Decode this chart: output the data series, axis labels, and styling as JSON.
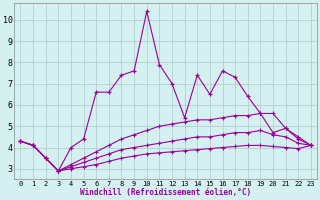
{
  "xlabel": "Windchill (Refroidissement éolien,°C)",
  "x": [
    0,
    1,
    2,
    3,
    4,
    5,
    6,
    7,
    8,
    9,
    10,
    11,
    12,
    13,
    14,
    15,
    16,
    17,
    18,
    19,
    20,
    21,
    22,
    23
  ],
  "series1": [
    4.3,
    4.1,
    3.5,
    2.9,
    4.0,
    4.4,
    6.6,
    6.6,
    7.4,
    7.6,
    10.4,
    7.9,
    7.0,
    5.4,
    7.4,
    6.5,
    7.6,
    7.3,
    6.4,
    5.6,
    4.7,
    4.9,
    4.4,
    4.1
  ],
  "series2": [
    4.3,
    4.1,
    3.5,
    2.9,
    3.2,
    3.5,
    3.8,
    4.1,
    4.4,
    4.6,
    4.8,
    5.0,
    5.1,
    5.2,
    5.3,
    5.3,
    5.4,
    5.5,
    5.5,
    5.6,
    5.6,
    4.9,
    4.5,
    4.1
  ],
  "series3": [
    4.3,
    4.1,
    3.5,
    2.9,
    3.1,
    3.3,
    3.5,
    3.7,
    3.9,
    4.0,
    4.1,
    4.2,
    4.3,
    4.4,
    4.5,
    4.5,
    4.6,
    4.7,
    4.7,
    4.8,
    4.6,
    4.5,
    4.2,
    4.1
  ],
  "series4": [
    4.3,
    4.1,
    3.5,
    2.9,
    3.0,
    3.1,
    3.2,
    3.35,
    3.5,
    3.6,
    3.7,
    3.75,
    3.8,
    3.85,
    3.9,
    3.95,
    4.0,
    4.05,
    4.1,
    4.1,
    4.05,
    4.0,
    3.95,
    4.1
  ],
  "color": "#990099",
  "bg_color": "#d4f0f0",
  "grid_color": "#b0c8c8",
  "ylim": [
    2.5,
    10.8
  ],
  "yticks": [
    3,
    4,
    5,
    6,
    7,
    8,
    9,
    10
  ],
  "xticks": [
    0,
    1,
    2,
    3,
    4,
    5,
    6,
    7,
    8,
    9,
    10,
    11,
    12,
    13,
    14,
    15,
    16,
    17,
    18,
    19,
    20,
    21,
    22,
    23
  ]
}
